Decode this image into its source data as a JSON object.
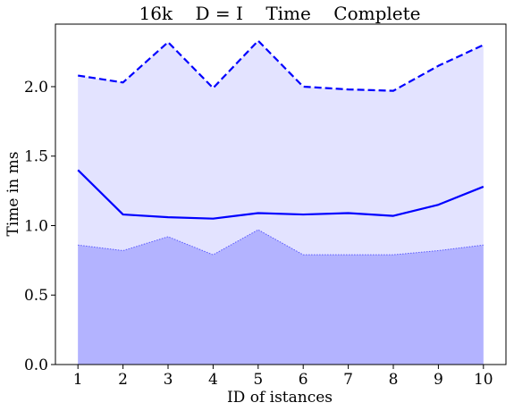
{
  "chart_data": {
    "type": "area",
    "title": "16k    D = I    Time    Complete",
    "xlabel": "ID of istances",
    "ylabel": "Time in ms",
    "x": [
      1,
      2,
      3,
      4,
      5,
      6,
      7,
      8,
      9,
      10
    ],
    "xlim": [
      0.5,
      10.5
    ],
    "ylim": [
      0.0,
      2.45
    ],
    "yticks": [
      0.0,
      0.5,
      1.0,
      1.5,
      2.0
    ],
    "ytick_labels": [
      "0.0",
      "0.5",
      "1.0",
      "1.5",
      "2.0"
    ],
    "xticks": [
      1,
      2,
      3,
      4,
      5,
      6,
      7,
      8,
      9,
      10
    ],
    "xtick_labels": [
      "1",
      "2",
      "3",
      "4",
      "5",
      "6",
      "7",
      "8",
      "9",
      "10"
    ],
    "grid": false,
    "legend": "none",
    "series": [
      {
        "role": "max",
        "style": "dashed-line",
        "values": [
          2.08,
          2.03,
          2.32,
          1.99,
          2.33,
          2.0,
          1.98,
          1.97,
          2.15,
          2.3
        ]
      },
      {
        "role": "mean",
        "style": "solid-line",
        "values": [
          1.4,
          1.08,
          1.06,
          1.05,
          1.09,
          1.08,
          1.09,
          1.07,
          1.15,
          1.28
        ]
      },
      {
        "role": "min",
        "style": "filled-area",
        "values": [
          0.86,
          0.82,
          0.92,
          0.79,
          0.97,
          0.79,
          0.79,
          0.79,
          0.82,
          0.86
        ]
      }
    ],
    "colors": {
      "line": "#0000ff",
      "band_fill": "#e3e3ff",
      "min_fill": "#b3b3ff",
      "min_edge": "#5a5aff",
      "axes": "#000000"
    }
  }
}
